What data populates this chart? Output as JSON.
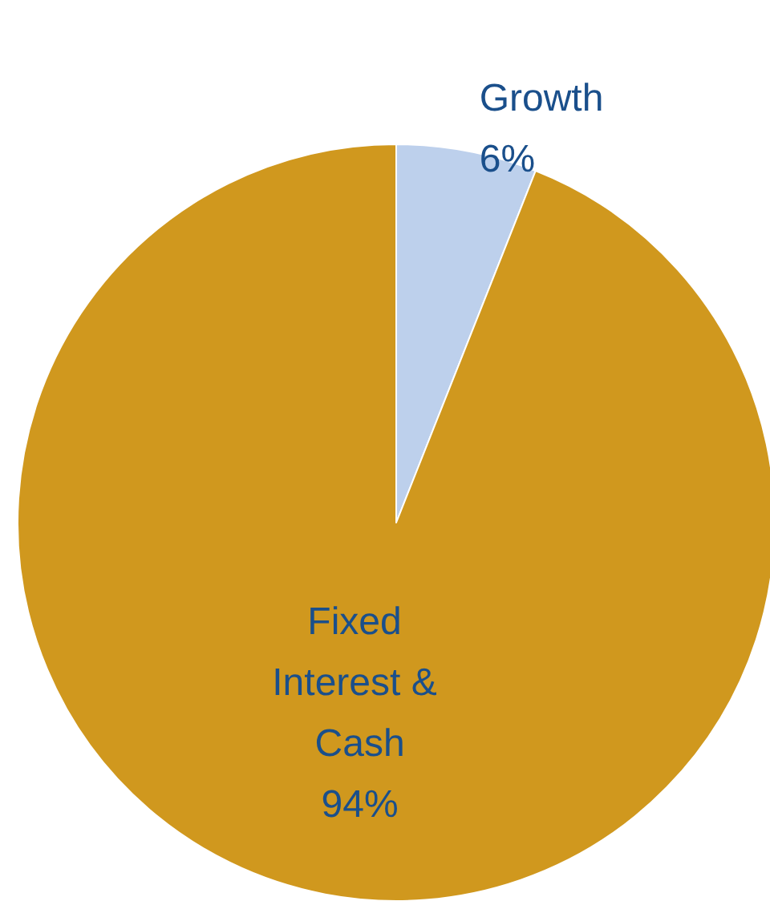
{
  "chart_data": {
    "type": "pie",
    "categories": [
      "Growth",
      "Fixed Interest & Cash"
    ],
    "values": [
      6,
      94
    ],
    "colors": [
      "#bdd0ec",
      "#d0981e"
    ],
    "value_labels": [
      "6%",
      "94%"
    ],
    "legend": false
  }
}
